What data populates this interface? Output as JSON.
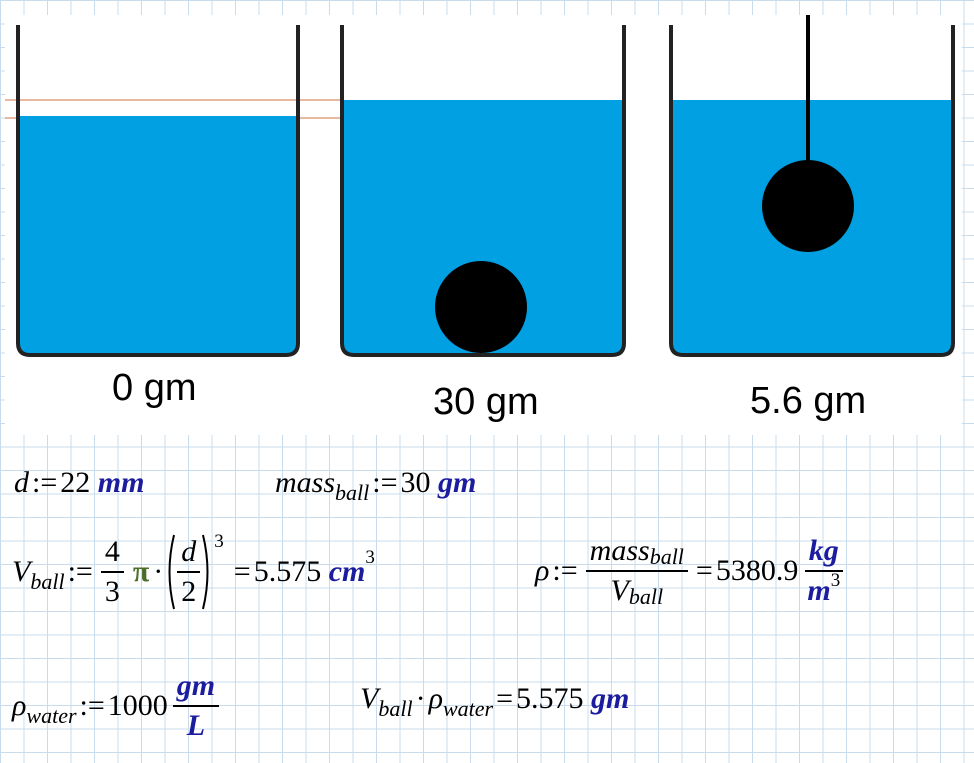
{
  "beakers": [
    {
      "label": "0 gm"
    },
    {
      "label": "30 gm"
    },
    {
      "label": "5.6 gm"
    }
  ],
  "equations": {
    "diameter": {
      "name": "d",
      "assign": ":=",
      "value": 22,
      "unit": "mm"
    },
    "mass": {
      "name": "mass",
      "subscript": "ball",
      "assign": ":=",
      "value": 30,
      "unit": "gm"
    },
    "volume": {
      "name": "V",
      "subscript": "ball",
      "assign": ":=",
      "coef_num": 4,
      "coef_den": 3,
      "pi": "π",
      "dot": "·",
      "frac_num": "d",
      "frac_den": 2,
      "exponent": 3,
      "equals": "=",
      "result": 5.575,
      "unit": "cm",
      "unit_exponent": 3
    },
    "density": {
      "name": "ρ",
      "assign": ":=",
      "num_name": "mass",
      "num_subscript": "ball",
      "den_name": "V",
      "den_subscript": "ball",
      "equals": "=",
      "result": 5380.9,
      "unit_num": "kg",
      "unit_den": "m",
      "unit_den_exponent": 3
    },
    "water_density": {
      "name": "ρ",
      "subscript": "water",
      "assign": ":=",
      "value": 1000,
      "unit_num": "gm",
      "unit_den": "L"
    },
    "buoyancy": {
      "name1": "V",
      "sub1": "ball",
      "dot": "·",
      "name2": "ρ",
      "sub2": "water",
      "equals": "=",
      "result": 5.575,
      "unit": "gm"
    }
  }
}
